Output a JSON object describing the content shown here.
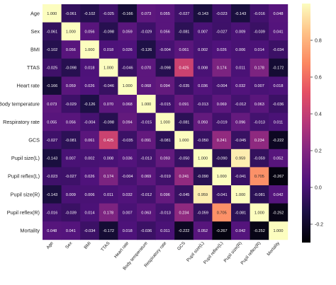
{
  "chart_data": {
    "type": "heatmap",
    "title": "",
    "labels": [
      "Age",
      "Sex",
      "BMI",
      "TTAS",
      "Heart rate",
      "Body temperature",
      "Respiratory rate",
      "GCS",
      "Pupil size(L)",
      "Pupil reflex(L)",
      "Pupil size(R)",
      "Pupil reflex(R)",
      "Mortality"
    ],
    "values": [
      [
        "1.000",
        "-0.061",
        "-0.102",
        "-0.025",
        "-0.166",
        "0.073",
        "0.055",
        "-0.027",
        "-0.143",
        "-0.023",
        "-0.143",
        "-0.016",
        "0.048"
      ],
      [
        "-0.061",
        "1.000",
        "0.056",
        "-0.098",
        "0.059",
        "-0.029",
        "0.056",
        "-0.081",
        "0.007",
        "-0.027",
        "0.009",
        "-0.039",
        "0.041"
      ],
      [
        "-0.102",
        "0.056",
        "1.000",
        "0.018",
        "0.026",
        "-0.126",
        "-0.004",
        "0.061",
        "0.002",
        "0.026",
        "0.006",
        "0.014",
        "-0.034"
      ],
      [
        "-0.025",
        "-0.098",
        "0.018",
        "1.000",
        "-0.046",
        "0.070",
        "-0.098",
        "0.425",
        "0.008",
        "0.174",
        "0.011",
        "0.178",
        "-0.172"
      ],
      [
        "-0.166",
        "0.059",
        "0.026",
        "-0.046",
        "1.000",
        "0.068",
        "0.094",
        "-0.035",
        "0.036",
        "-0.004",
        "0.032",
        "0.007",
        "0.018"
      ],
      [
        "0.073",
        "-0.029",
        "-0.126",
        "0.070",
        "0.068",
        "1.000",
        "-0.015",
        "0.091",
        "-0.013",
        "0.069",
        "-0.012",
        "0.063",
        "-0.036"
      ],
      [
        "0.055",
        "0.056",
        "-0.004",
        "-0.098",
        "0.094",
        "-0.015",
        "1.000",
        "-0.081",
        "0.093",
        "-0.019",
        "0.096",
        "-0.013",
        "0.011"
      ],
      [
        "-0.027",
        "-0.081",
        "0.061",
        "0.425",
        "-0.035",
        "0.091",
        "-0.081",
        "1.000",
        "-0.050",
        "0.241",
        "-0.045",
        "0.234",
        "-0.222"
      ],
      [
        "-0.143",
        "0.007",
        "0.002",
        "0.008",
        "0.036",
        "-0.013",
        "0.093",
        "-0.050",
        "1.000",
        "-0.090",
        "0.959",
        "-0.059",
        "0.052"
      ],
      [
        "-0.023",
        "-0.027",
        "0.026",
        "0.174",
        "-0.004",
        "0.069",
        "-0.019",
        "0.241",
        "-0.090",
        "1.000",
        "-0.041",
        "0.705",
        "-0.267"
      ],
      [
        "-0.143",
        "0.009",
        "0.006",
        "0.011",
        "0.032",
        "-0.012",
        "0.096",
        "-0.045",
        "0.959",
        "-0.041",
        "1.000",
        "-0.081",
        "0.042"
      ],
      [
        "-0.016",
        "-0.039",
        "0.014",
        "0.178",
        "0.007",
        "0.063",
        "-0.013",
        "0.234",
        "-0.059",
        "0.705",
        "-0.081",
        "1.000",
        "-0.252"
      ],
      [
        "0.048",
        "0.041",
        "-0.034",
        "-0.172",
        "0.018",
        "-0.036",
        "0.011",
        "-0.222",
        "0.052",
        "-0.267",
        "0.042",
        "-0.252",
        "1.000"
      ]
    ],
    "colorbar": {
      "colormap": "magma",
      "vmin": -0.3,
      "vmax": 1.0,
      "ticks": [
        "0.8",
        "0.6",
        "0.4",
        "0.2",
        "0.0",
        "-0.2"
      ]
    },
    "legend": "right"
  }
}
